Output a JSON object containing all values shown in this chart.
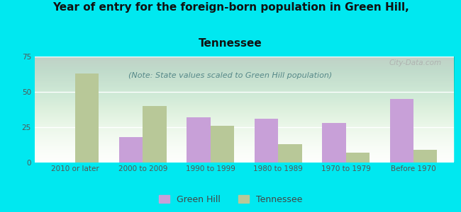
{
  "categories": [
    "2010 or later",
    "2000 to 2009",
    "1990 to 1999",
    "1980 to 1989",
    "1970 to 1979",
    "Before 1970"
  ],
  "green_hill": [
    0,
    18,
    32,
    31,
    28,
    45
  ],
  "tennessee": [
    63,
    40,
    26,
    13,
    7,
    9
  ],
  "green_hill_color": "#c8a0d8",
  "tennessee_color": "#b8c898",
  "title_line1": "Year of entry for the foreign-born population in Green Hill,",
  "title_line2": "Tennessee",
  "subtitle": "(Note: State values scaled to Green Hill population)",
  "ylim": [
    0,
    75
  ],
  "yticks": [
    0,
    25,
    50,
    75
  ],
  "background_color": "#00e8f0",
  "plot_bg_top": "#c8ddc0",
  "plot_bg_bottom": "#ffffff",
  "watermark": "City-Data.com",
  "legend_green_hill": "Green Hill",
  "legend_tennessee": "Tennessee",
  "bar_width": 0.35,
  "title_fontsize": 11,
  "subtitle_fontsize": 8,
  "tick_fontsize": 7.5,
  "legend_fontsize": 9
}
